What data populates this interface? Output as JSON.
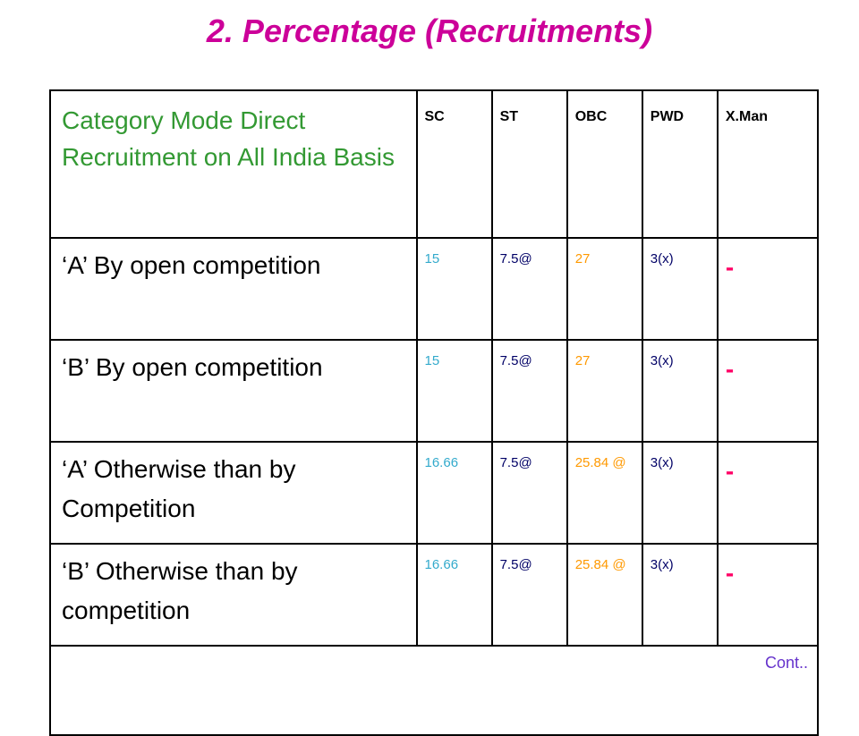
{
  "title": "2. Percentage (Recruitments)",
  "header": {
    "category": "Category Mode Direct Recruitment on All India Basis",
    "columns": [
      "SC",
      "ST",
      "OBC",
      "PWD",
      "X.Man"
    ]
  },
  "rows": [
    {
      "label": "‘A’ By open competition",
      "sc": "15",
      "st": "7.5@",
      "obc": "27",
      "pwd": "3(x)",
      "xman": "-"
    },
    {
      "label": "‘B’ By open competition",
      "sc": "15",
      "st": "7.5@",
      "obc": "27",
      "pwd": "3(x)",
      "xman": "-"
    },
    {
      "label": "‘A’ Otherwise than by Competition",
      "sc": "16.66",
      "st": "7.5@",
      "obc": "25.84 @",
      "pwd": "3(x)",
      "xman": "-"
    },
    {
      "label": "‘B’ Otherwise than by competition",
      "sc": "16.66",
      "st": "7.5@",
      "obc": "25.84 @",
      "pwd": "3(x)",
      "xman": "-"
    }
  ],
  "footer": {
    "cont": "Cont.."
  },
  "colors": {
    "title": "#cc0099",
    "category_header": "#339933",
    "sc": "#33aacc",
    "obc": "#ff9900",
    "xman": "#ff0066",
    "cont": "#6633cc"
  }
}
